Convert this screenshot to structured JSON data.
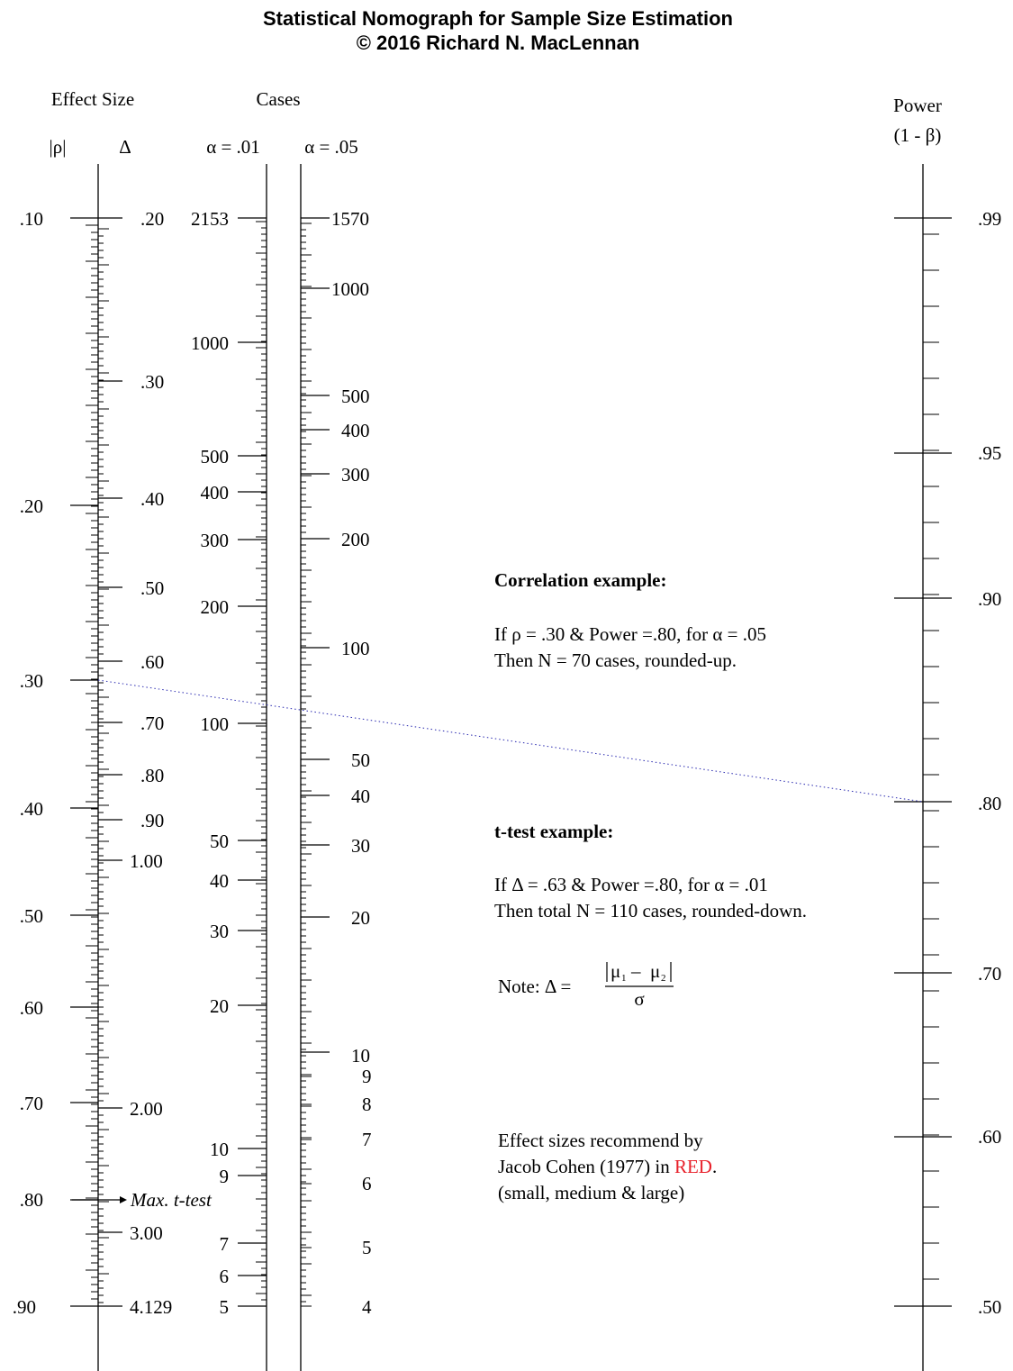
{
  "title_line1": "Statistical Nomograph for Sample Size Estimation",
  "title_line2": "© 2016 Richard N. MacLennan",
  "headers": {
    "effect_size": "Effect Size",
    "cases": "Cases",
    "power": "Power",
    "power_sub": "(1 - β)",
    "rho": "|ρ|",
    "delta": "Δ",
    "alpha01": "α = .01",
    "alpha05": "α = .05"
  },
  "colors": {
    "red": "#e8202a",
    "line": "#000000",
    "example_line": "#2a2ab0"
  },
  "rho_labels": [
    {
      "t": ".10",
      "red": true
    },
    {
      "t": ".20",
      "red": false
    },
    {
      "t": ".30",
      "red": true
    },
    {
      "t": ".40",
      "red": false
    },
    {
      "t": ".50",
      "red": true
    },
    {
      "t": ".60",
      "red": false
    },
    {
      "t": ".70",
      "red": false
    },
    {
      "t": ".80",
      "red": false
    },
    {
      "t": ".90",
      "red": false
    }
  ],
  "delta_labels": [
    {
      "t": ".20",
      "red": true
    },
    {
      "t": ".30",
      "red": false
    },
    {
      "t": ".40",
      "red": false
    },
    {
      "t": ".50",
      "red": true
    },
    {
      "t": ".60",
      "red": false
    },
    {
      "t": ".70",
      "red": false
    },
    {
      "t": ".80",
      "red": true
    },
    {
      "t": ".90",
      "red": false
    },
    {
      "t": "1.00",
      "red": false
    },
    {
      "t": "2.00",
      "red": false
    },
    {
      "t": "3.00",
      "red": false
    },
    {
      "t": "4.129",
      "red": false
    }
  ],
  "max_ttest": "Max. t-test",
  "alpha01_labels": [
    "2153",
    "1000",
    "500",
    "400",
    "300",
    "200",
    "100",
    "50",
    "40",
    "30",
    "20",
    "10",
    "9",
    "7",
    "6",
    "5"
  ],
  "alpha05_labels": [
    "1570",
    "1000",
    "500",
    "400",
    "300",
    "200",
    "100",
    "50",
    "40",
    "30",
    "20",
    "10",
    "9",
    "8",
    "7",
    "6",
    "5",
    "4"
  ],
  "power_labels": [
    ".99",
    ".95",
    ".90",
    ".80",
    ".70",
    ".60",
    ".50"
  ],
  "correlation_example": {
    "heading": "Correlation example:",
    "line1": "If ρ = .30 & Power =.80, for α = .05",
    "line2": "Then N = 70 cases, rounded-up."
  },
  "ttest_example": {
    "heading": "t-test example:",
    "line1": "If Δ = .63 & Power =.80, for α = .01",
    "line2": "Then total N = 110 cases, rounded-down."
  },
  "note": {
    "prefix": "Note: Δ  =",
    "numerator_mu": "μ",
    "sub1": "1",
    "minus": "–",
    "sub2": "2",
    "denominator": "σ"
  },
  "cohen_note": {
    "line1": "Effect sizes recommend by",
    "line2_prefix": "Jacob Cohen (1977) in ",
    "line2_red": "RED",
    "line2_suffix": ".",
    "line3": "(small, medium & large)"
  }
}
